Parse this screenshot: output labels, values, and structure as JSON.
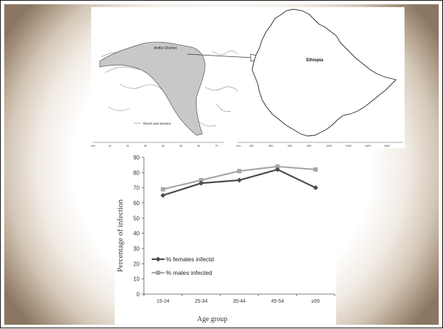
{
  "map": {
    "district_label": "Anfilo District",
    "country_label": "Ethiopia",
    "legend_label": "Rivers and streams",
    "scale_left": {
      "unit": "Km",
      "ticks": [
        "10",
        "20",
        "30",
        "40",
        "50",
        "60",
        "70"
      ]
    },
    "scale_right": {
      "unit": "Km",
      "ticks": [
        "200",
        "400",
        "600",
        "800",
        "1000",
        "1200",
        "1400",
        "1600"
      ]
    }
  },
  "chart_data": {
    "type": "line",
    "categories": [
      "15-24",
      "25-34",
      "35-44",
      "45-54",
      "≥55"
    ],
    "series": [
      {
        "name": "% females infectd",
        "values": [
          65,
          73,
          75,
          82,
          70
        ],
        "color": "#4a4a4a",
        "marker": "diamond"
      },
      {
        "name": "% males infected",
        "values": [
          69,
          75,
          81,
          84,
          82
        ],
        "color": "#a6a6a6",
        "marker": "square"
      }
    ],
    "xlabel": "Age group",
    "ylabel": "Percentage of infection",
    "ylim": [
      0,
      90
    ],
    "yticks": [
      "0",
      "10",
      "20",
      "30",
      "40",
      "50",
      "60",
      "70",
      "80",
      "90"
    ],
    "grid": false,
    "legend_position": "bottom-left"
  }
}
